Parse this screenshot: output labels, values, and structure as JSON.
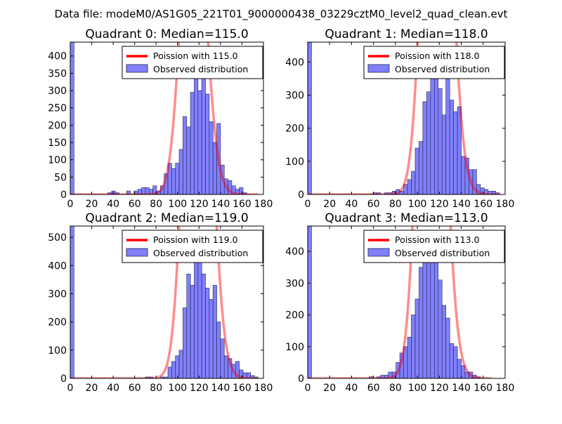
{
  "suptitle": "Data file: modeM0/AS1G05_221T01_9000000438_03229cztM0_level2_quad_clean.evt",
  "colors": {
    "bar_fill": "#8080ff",
    "bar_edge": "#22224a",
    "curve": "#ff0000"
  },
  "chart_data": [
    {
      "type": "bar",
      "title": "Quadrant 0: Median=115.0",
      "legend": {
        "placement": "top-right",
        "curve_label": "Poission with 115.0",
        "bar_label": "Observed distribution"
      },
      "xlim": [
        0,
        180
      ],
      "ylim": [
        0,
        440
      ],
      "xticks": [
        0,
        20,
        40,
        60,
        80,
        100,
        120,
        140,
        160,
        180
      ],
      "yticks": [
        0,
        50,
        100,
        150,
        200,
        250,
        300,
        350,
        400
      ],
      "bin_width": 3.5,
      "bins": [
        {
          "x": 0,
          "y": 440
        },
        {
          "x": 35,
          "y": 5
        },
        {
          "x": 38.5,
          "y": 10
        },
        {
          "x": 42,
          "y": 5
        },
        {
          "x": 52.5,
          "y": 10
        },
        {
          "x": 59.5,
          "y": 10
        },
        {
          "x": 63,
          "y": 15
        },
        {
          "x": 66.5,
          "y": 20
        },
        {
          "x": 70,
          "y": 20
        },
        {
          "x": 73.5,
          "y": 15
        },
        {
          "x": 77,
          "y": 25
        },
        {
          "x": 80.5,
          "y": 10
        },
        {
          "x": 84,
          "y": 25
        },
        {
          "x": 87.5,
          "y": 60
        },
        {
          "x": 91,
          "y": 90
        },
        {
          "x": 94.5,
          "y": 75
        },
        {
          "x": 98,
          "y": 90
        },
        {
          "x": 101.5,
          "y": 130
        },
        {
          "x": 105,
          "y": 225
        },
        {
          "x": 108.5,
          "y": 195
        },
        {
          "x": 112,
          "y": 295
        },
        {
          "x": 115.5,
          "y": 355
        },
        {
          "x": 119,
          "y": 300
        },
        {
          "x": 122.5,
          "y": 350
        },
        {
          "x": 126,
          "y": 290
        },
        {
          "x": 129.5,
          "y": 210
        },
        {
          "x": 133,
          "y": 150
        },
        {
          "x": 136.5,
          "y": 205
        },
        {
          "x": 140,
          "y": 85
        },
        {
          "x": 143.5,
          "y": 45
        },
        {
          "x": 147,
          "y": 40
        },
        {
          "x": 150.5,
          "y": 25
        },
        {
          "x": 154,
          "y": 15
        },
        {
          "x": 157.5,
          "y": 20
        },
        {
          "x": 161,
          "y": 5
        }
      ],
      "poisson": {
        "mean": 115.0,
        "scale": 26700,
        "x_range": [
          0,
          175
        ]
      }
    },
    {
      "type": "bar",
      "title": "Quadrant 1: Median=118.0",
      "legend": {
        "placement": "top-right",
        "curve_label": "Poission with 118.0",
        "bar_label": "Observed distribution"
      },
      "xlim": [
        0,
        180
      ],
      "ylim": [
        0,
        460
      ],
      "xticks": [
        0,
        20,
        40,
        60,
        80,
        100,
        120,
        140,
        160,
        180
      ],
      "yticks": [
        0,
        100,
        200,
        300,
        400
      ],
      "bin_width": 3.5,
      "bins": [
        {
          "x": 0,
          "y": 460
        },
        {
          "x": 59.5,
          "y": 5
        },
        {
          "x": 63,
          "y": 5
        },
        {
          "x": 70,
          "y": 5
        },
        {
          "x": 73.5,
          "y": 5
        },
        {
          "x": 77,
          "y": 10
        },
        {
          "x": 80.5,
          "y": 15
        },
        {
          "x": 84,
          "y": 10
        },
        {
          "x": 87.5,
          "y": 30
        },
        {
          "x": 91,
          "y": 45
        },
        {
          "x": 94.5,
          "y": 70
        },
        {
          "x": 98,
          "y": 140
        },
        {
          "x": 101.5,
          "y": 160
        },
        {
          "x": 105,
          "y": 280
        },
        {
          "x": 108.5,
          "y": 310
        },
        {
          "x": 112,
          "y": 390
        },
        {
          "x": 115.5,
          "y": 425
        },
        {
          "x": 119,
          "y": 320
        },
        {
          "x": 122.5,
          "y": 240
        },
        {
          "x": 126,
          "y": 390
        },
        {
          "x": 129.5,
          "y": 285
        },
        {
          "x": 133,
          "y": 250
        },
        {
          "x": 136.5,
          "y": 265
        },
        {
          "x": 140,
          "y": 115
        },
        {
          "x": 143.5,
          "y": 110
        },
        {
          "x": 147,
          "y": 75
        },
        {
          "x": 150.5,
          "y": 75
        },
        {
          "x": 154,
          "y": 30
        },
        {
          "x": 157.5,
          "y": 20
        },
        {
          "x": 161,
          "y": 15
        },
        {
          "x": 164.5,
          "y": 10
        },
        {
          "x": 168,
          "y": 10
        },
        {
          "x": 171.5,
          "y": 5
        }
      ],
      "poisson": {
        "mean": 118.0,
        "scale": 47700,
        "x_range": [
          0,
          175
        ]
      }
    },
    {
      "type": "bar",
      "title": "Quadrant 2: Median=119.0",
      "legend": {
        "placement": "top-right",
        "curve_label": "Poission with 119.0",
        "bar_label": "Observed distribution"
      },
      "xlim": [
        0,
        180
      ],
      "ylim": [
        0,
        540
      ],
      "xticks": [
        0,
        20,
        40,
        60,
        80,
        100,
        120,
        140,
        160,
        180
      ],
      "yticks": [
        0,
        100,
        200,
        300,
        400,
        500
      ],
      "bin_width": 3.5,
      "bins": [
        {
          "x": 0,
          "y": 540
        },
        {
          "x": 70,
          "y": 5
        },
        {
          "x": 73.5,
          "y": 5
        },
        {
          "x": 84,
          "y": 5
        },
        {
          "x": 87.5,
          "y": 5
        },
        {
          "x": 91,
          "y": 40
        },
        {
          "x": 94.5,
          "y": 60
        },
        {
          "x": 98,
          "y": 80
        },
        {
          "x": 101.5,
          "y": 100
        },
        {
          "x": 105,
          "y": 250
        },
        {
          "x": 108.5,
          "y": 370
        },
        {
          "x": 112,
          "y": 330
        },
        {
          "x": 115.5,
          "y": 440
        },
        {
          "x": 119,
          "y": 440
        },
        {
          "x": 122.5,
          "y": 370
        },
        {
          "x": 126,
          "y": 320
        },
        {
          "x": 129.5,
          "y": 280
        },
        {
          "x": 133,
          "y": 330
        },
        {
          "x": 136.5,
          "y": 200
        },
        {
          "x": 140,
          "y": 140
        },
        {
          "x": 143.5,
          "y": 80
        },
        {
          "x": 147,
          "y": 70
        },
        {
          "x": 150.5,
          "y": 50
        },
        {
          "x": 154,
          "y": 60
        },
        {
          "x": 157.5,
          "y": 30
        },
        {
          "x": 161,
          "y": 20
        },
        {
          "x": 164.5,
          "y": 20
        },
        {
          "x": 168,
          "y": 10
        },
        {
          "x": 171.5,
          "y": 5
        }
      ],
      "poisson": {
        "mean": 119.0,
        "scale": 54000,
        "x_range": [
          0,
          175
        ]
      }
    },
    {
      "type": "bar",
      "title": "Quadrant 3: Median=113.0",
      "legend": {
        "placement": "top-right",
        "curve_label": "Poission with 113.0",
        "bar_label": "Observed distribution"
      },
      "xlim": [
        0,
        180
      ],
      "ylim": [
        0,
        480
      ],
      "xticks": [
        0,
        20,
        40,
        60,
        80,
        100,
        120,
        140,
        160,
        180
      ],
      "yticks": [
        0,
        100,
        200,
        300,
        400
      ],
      "bin_width": 3.5,
      "bins": [
        {
          "x": 0,
          "y": 480
        },
        {
          "x": 56,
          "y": 5
        },
        {
          "x": 63,
          "y": 5
        },
        {
          "x": 66.5,
          "y": 10
        },
        {
          "x": 70,
          "y": 10
        },
        {
          "x": 73.5,
          "y": 20
        },
        {
          "x": 77,
          "y": 20
        },
        {
          "x": 80.5,
          "y": 50
        },
        {
          "x": 84,
          "y": 80
        },
        {
          "x": 87.5,
          "y": 100
        },
        {
          "x": 91,
          "y": 130
        },
        {
          "x": 94.5,
          "y": 200
        },
        {
          "x": 98,
          "y": 250
        },
        {
          "x": 101.5,
          "y": 350
        },
        {
          "x": 105,
          "y": 400
        },
        {
          "x": 108.5,
          "y": 440
        },
        {
          "x": 112,
          "y": 380
        },
        {
          "x": 115.5,
          "y": 420
        },
        {
          "x": 119,
          "y": 310
        },
        {
          "x": 122.5,
          "y": 230
        },
        {
          "x": 126,
          "y": 190
        },
        {
          "x": 129.5,
          "y": 110
        },
        {
          "x": 133,
          "y": 100
        },
        {
          "x": 136.5,
          "y": 60
        },
        {
          "x": 140,
          "y": 40
        },
        {
          "x": 143.5,
          "y": 20
        },
        {
          "x": 147,
          "y": 20
        },
        {
          "x": 150.5,
          "y": 10
        },
        {
          "x": 154,
          "y": 5
        }
      ],
      "poisson": {
        "mean": 113.0,
        "scale": 48800,
        "x_range": [
          0,
          168
        ]
      }
    }
  ]
}
